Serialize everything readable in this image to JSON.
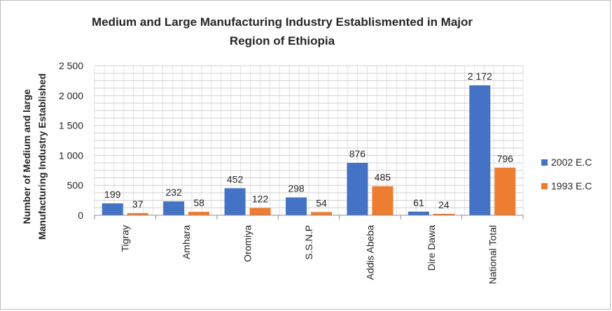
{
  "chart_data": {
    "type": "bar",
    "title_lines": [
      "Medium and Large Manufacturing Industry Establismented in Major",
      "Region of Ethiopia"
    ],
    "ylabel_lines": [
      "Number of Medium and large",
      "Manufacturing Industry Established"
    ],
    "xlabel": "",
    "categories": [
      "Tigray",
      "Amhara",
      "Oromiya",
      "S.S.N.P",
      "Addis Abeba",
      "Dire Dawa",
      "National Total"
    ],
    "series": [
      {
        "name": "2002 E.C",
        "color": "#4472c4",
        "values": [
          199,
          232,
          452,
          298,
          876,
          61,
          2172
        ]
      },
      {
        "name": "1993 E.C",
        "color": "#ed7d31",
        "values": [
          37,
          58,
          122,
          54,
          485,
          24,
          796
        ]
      }
    ],
    "ylim": [
      0,
      2500
    ],
    "yticks": [
      {
        "value": 0,
        "label": "0"
      },
      {
        "value": 500,
        "label": "500"
      },
      {
        "value": 1000,
        "label": "1 000"
      },
      {
        "value": 1500,
        "label": "1 500"
      },
      {
        "value": 2000,
        "label": "2 000"
      },
      {
        "value": 2500,
        "label": "2 500"
      }
    ],
    "grid": true,
    "legend_position": "right"
  }
}
